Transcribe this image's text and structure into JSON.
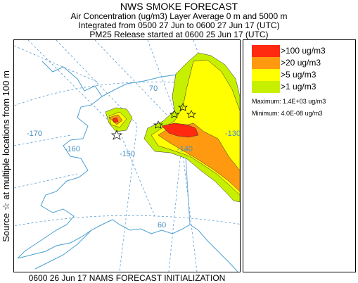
{
  "header": {
    "title": "NWS SMOKE FORECAST",
    "line1": "Air Concentration (ug/m3) Layer Average    0 m and  5000 m",
    "line2": "Integrated from 0500 27 Jun to 0600 27 Jun 17 (UTC)",
    "line3": "PM25 Release started at 0600 25 Jun 17 (UTC)"
  },
  "side_label": "Source ☆  at multiple locations    from   100 m",
  "footer": "0600 26 Jun 17 NAMS FORECAST INITIALIZATION",
  "legend": {
    "items": [
      {
        "label": ">100 ug/m3",
        "color": "#ff2a10"
      },
      {
        "label": ">20 ug/m3",
        "color": "#ff9a10"
      },
      {
        "label": ">5 ug/m3",
        "color": "#ffff00"
      },
      {
        "label": ">1 ug/m3",
        "color": "#c6f000"
      }
    ],
    "maximum": "Maximum: 1.4E+03 ug/m3",
    "minimum": "Minimum: 4.0E-08 ug/m3"
  },
  "map": {
    "lon_labels": [
      "-170",
      "-160",
      "-150",
      "-140",
      "-130"
    ],
    "lat_labels": [
      "70",
      "60"
    ],
    "colors": {
      "grid": "#5a9bd0",
      "coast": "#4aa0d0",
      "border": "#6aa8d8"
    }
  }
}
